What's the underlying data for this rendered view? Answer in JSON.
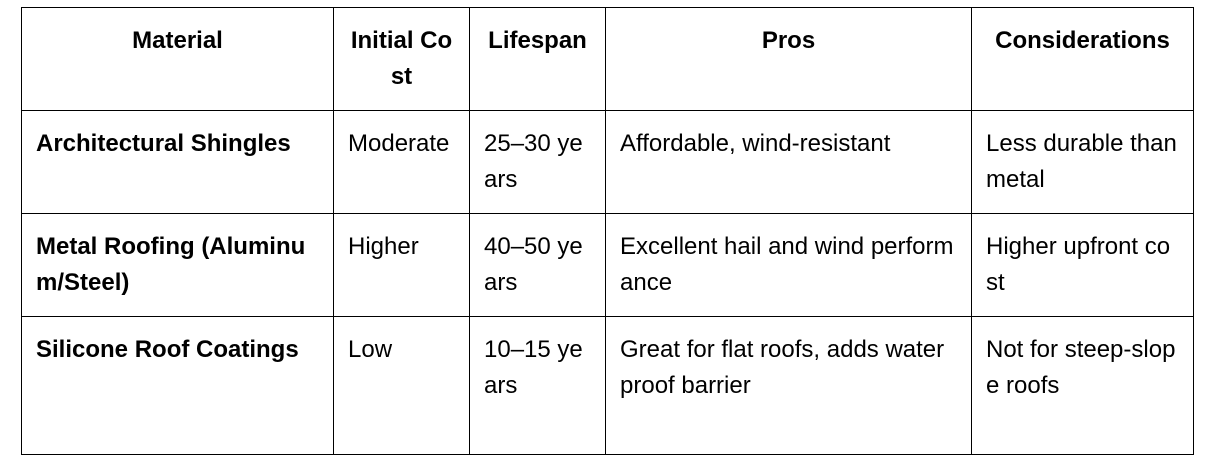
{
  "table": {
    "headers": [
      "Material",
      "Initial Cost",
      "Lifespan",
      "Pros",
      "Considerations"
    ],
    "rows": [
      {
        "material": "Architectural Shingles",
        "initial_cost": "Moderate",
        "lifespan": "25–30 years",
        "pros": "Affordable, wind-resistant",
        "considerations": "Less durable than metal"
      },
      {
        "material": "Metal Roofing (Aluminum/Steel)",
        "initial_cost": "Higher",
        "lifespan": "40–50 years",
        "pros": "Excellent hail and wind performance",
        "considerations": "Higher upfront cost"
      },
      {
        "material": "Silicone Roof Coatings",
        "initial_cost": "Low",
        "lifespan": "10–15 years",
        "pros": "Great for flat roofs, adds waterproof barrier",
        "considerations": "Not for steep-slope roofs"
      }
    ]
  }
}
